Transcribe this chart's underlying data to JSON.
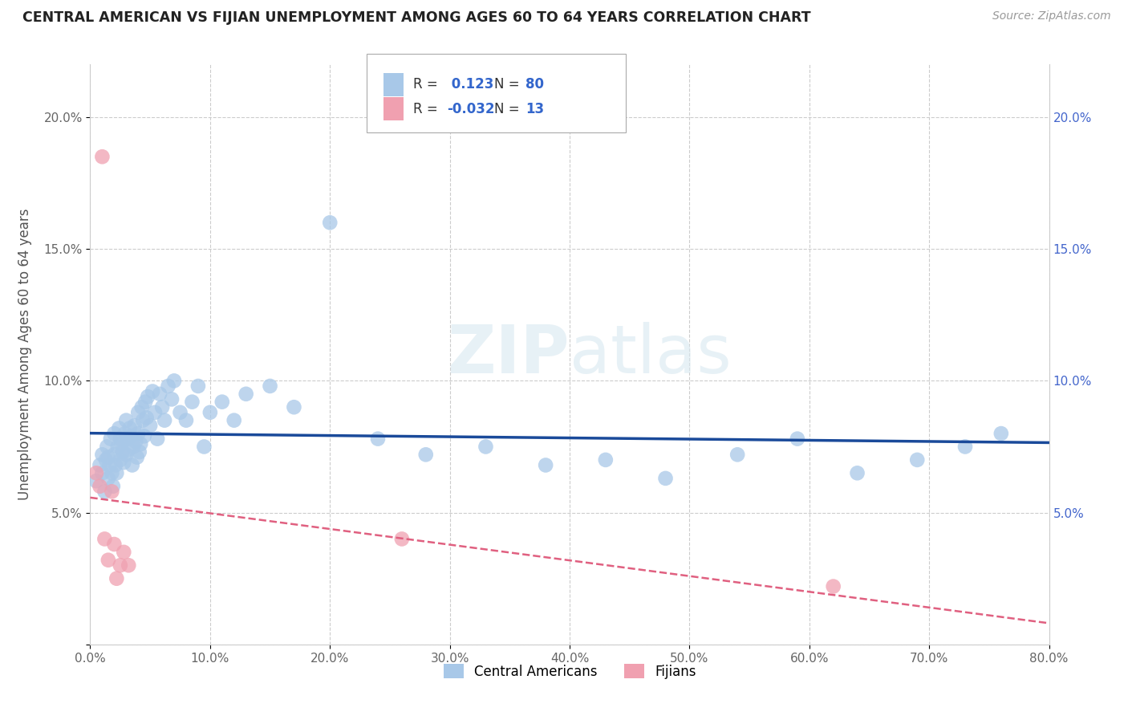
{
  "title": "CENTRAL AMERICAN VS FIJIAN UNEMPLOYMENT AMONG AGES 60 TO 64 YEARS CORRELATION CHART",
  "source": "Source: ZipAtlas.com",
  "ylabel": "Unemployment Among Ages 60 to 64 years",
  "xlim": [
    0.0,
    0.8
  ],
  "ylim": [
    0.0,
    0.22
  ],
  "xticks": [
    0.0,
    0.1,
    0.2,
    0.3,
    0.4,
    0.5,
    0.6,
    0.7,
    0.8
  ],
  "xticklabels": [
    "0.0%",
    "10.0%",
    "20.0%",
    "30.0%",
    "40.0%",
    "50.0%",
    "60.0%",
    "70.0%",
    "80.0%"
  ],
  "yticks": [
    0.0,
    0.05,
    0.1,
    0.15,
    0.2
  ],
  "yticklabels_left": [
    "",
    "5.0%",
    "10.0%",
    "15.0%",
    "20.0%"
  ],
  "yticklabels_right": [
    "",
    "5.0%",
    "10.0%",
    "15.0%",
    "20.0%"
  ],
  "central_american_color": "#a8c8e8",
  "fijian_color": "#f0a0b0",
  "central_american_line_color": "#1a4a9a",
  "fijian_line_color": "#e06080",
  "R_central": 0.123,
  "N_central": 80,
  "R_fijian": -0.032,
  "N_fijian": 13,
  "background_color": "#ffffff",
  "grid_color": "#cccccc",
  "legend_label_central": "Central Americans",
  "legend_label_fijian": "Fijians",
  "ca_x": [
    0.005,
    0.008,
    0.01,
    0.01,
    0.012,
    0.013,
    0.014,
    0.015,
    0.015,
    0.016,
    0.017,
    0.018,
    0.019,
    0.02,
    0.02,
    0.021,
    0.022,
    0.023,
    0.024,
    0.025,
    0.025,
    0.026,
    0.027,
    0.028,
    0.029,
    0.03,
    0.03,
    0.031,
    0.032,
    0.033,
    0.034,
    0.035,
    0.036,
    0.037,
    0.038,
    0.039,
    0.04,
    0.04,
    0.041,
    0.042,
    0.043,
    0.044,
    0.045,
    0.046,
    0.047,
    0.048,
    0.05,
    0.052,
    0.054,
    0.056,
    0.058,
    0.06,
    0.062,
    0.065,
    0.068,
    0.07,
    0.075,
    0.08,
    0.085,
    0.09,
    0.095,
    0.1,
    0.11,
    0.12,
    0.13,
    0.15,
    0.17,
    0.2,
    0.24,
    0.28,
    0.33,
    0.38,
    0.43,
    0.48,
    0.54,
    0.59,
    0.64,
    0.69,
    0.73,
    0.76
  ],
  "ca_y": [
    0.062,
    0.068,
    0.065,
    0.072,
    0.058,
    0.07,
    0.075,
    0.063,
    0.071,
    0.068,
    0.078,
    0.065,
    0.06,
    0.072,
    0.08,
    0.068,
    0.065,
    0.075,
    0.082,
    0.07,
    0.078,
    0.076,
    0.073,
    0.069,
    0.08,
    0.072,
    0.085,
    0.078,
    0.074,
    0.082,
    0.079,
    0.068,
    0.075,
    0.083,
    0.077,
    0.071,
    0.08,
    0.088,
    0.073,
    0.076,
    0.09,
    0.085,
    0.079,
    0.092,
    0.086,
    0.094,
    0.083,
    0.096,
    0.088,
    0.078,
    0.095,
    0.09,
    0.085,
    0.098,
    0.093,
    0.1,
    0.088,
    0.085,
    0.092,
    0.098,
    0.075,
    0.088,
    0.092,
    0.085,
    0.095,
    0.098,
    0.09,
    0.16,
    0.078,
    0.072,
    0.075,
    0.068,
    0.07,
    0.063,
    0.072,
    0.078,
    0.065,
    0.07,
    0.075,
    0.08
  ],
  "fi_x": [
    0.005,
    0.008,
    0.01,
    0.012,
    0.015,
    0.018,
    0.02,
    0.022,
    0.025,
    0.028,
    0.032,
    0.26,
    0.62
  ],
  "fi_y": [
    0.065,
    0.06,
    0.185,
    0.04,
    0.032,
    0.058,
    0.038,
    0.025,
    0.03,
    0.035,
    0.03,
    0.04,
    0.022
  ]
}
